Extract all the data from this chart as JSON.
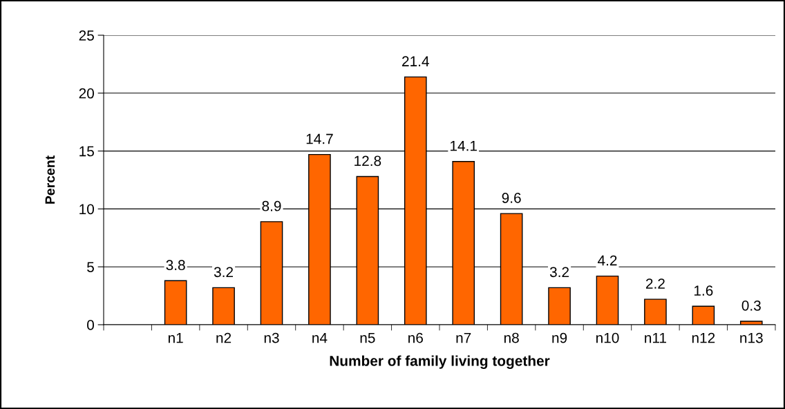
{
  "chart_data": {
    "type": "bar",
    "xlabel": "Number of family living together",
    "ylabel": "Percent",
    "categories": [
      null,
      "n1",
      "n2",
      "n3",
      "n4",
      "n5",
      "n6",
      "n7",
      "n8",
      "n9",
      "n10",
      "n11",
      "n12",
      "n13"
    ],
    "values": [
      null,
      3.8,
      3.2,
      8.9,
      14.7,
      12.8,
      21.4,
      14.1,
      9.6,
      3.2,
      4.2,
      2.2,
      1.6,
      0.3
    ],
    "color": "#ff6600",
    "ylim": [
      0,
      25
    ],
    "yticks": [
      0,
      5,
      10,
      15,
      20,
      25
    ],
    "grid": "y",
    "data_labels": true,
    "legend": false
  }
}
